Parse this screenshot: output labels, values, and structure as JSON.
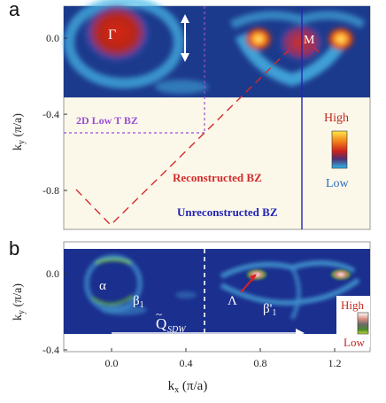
{
  "panel_a": {
    "letter": "a",
    "ylabel": "k_y (π/a)",
    "yticks": [
      {
        "v": 0.0,
        "label": "0.0"
      },
      {
        "v": -0.4,
        "label": "-0.4"
      },
      {
        "v": -0.8,
        "label": "-0.8"
      }
    ],
    "labels": {
      "gamma": "Γ",
      "m": "M",
      "bz_2d": "2D Low T BZ",
      "reconstructed": "Reconstructed BZ",
      "unreconstructed": "Unreconstructed BZ"
    },
    "colorbar": {
      "high": "High",
      "low": "Low"
    }
  },
  "panel_b": {
    "letter": "b",
    "ylabel": "k_y (π/a)",
    "yticks": [
      {
        "v": 0.0,
        "label": "0.0"
      },
      {
        "v": -0.4,
        "label": "-0.4"
      }
    ],
    "labels": {
      "alpha": "α",
      "beta1": "β",
      "beta1_sub": "1",
      "lambda": "Λ",
      "beta1p": "β'",
      "beta1p_sub": "1",
      "qsdw": "Q",
      "qsdw_sub": "SDW"
    },
    "colorbar": {
      "high": "High",
      "low": "Low"
    }
  },
  "xaxis": {
    "label": "k_x (π/a)",
    "ticks": [
      {
        "v": 0.0,
        "label": "0.0"
      },
      {
        "v": 0.4,
        "label": "0.4"
      },
      {
        "v": 0.8,
        "label": "0.8"
      },
      {
        "v": 1.2,
        "label": "1.2"
      }
    ]
  },
  "colors": {
    "panel_a_bg": "#fbf8ea",
    "map_bg": "#1c3a8c",
    "reconstructed": "#d42a2a",
    "unreconstructed": "#2323b4",
    "bz_2d": "#9a4fd6",
    "panel_b_bg": "#1a2f8e"
  }
}
